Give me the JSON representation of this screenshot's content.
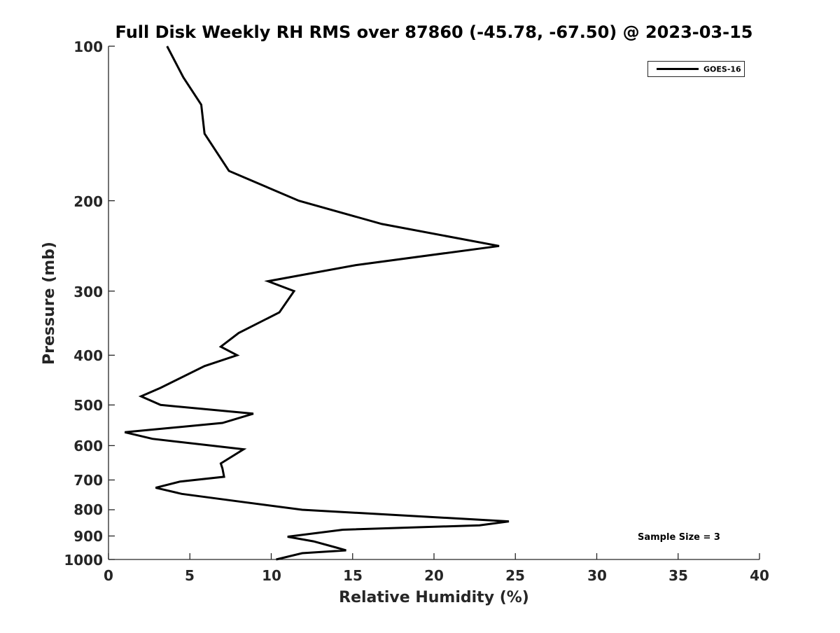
{
  "chart_data": {
    "type": "line",
    "title": "Full Disk Weekly RH RMS over 87860 (-45.78, -67.50) @ 2023-03-15",
    "xlabel": "Relative Humidity (%)",
    "ylabel": "Pressure (mb)",
    "xlim": [
      0,
      40
    ],
    "ylim": [
      100,
      1000
    ],
    "y_scale": "log",
    "y_reversed": true,
    "xticks": [
      "0",
      "5",
      "10",
      "15",
      "20",
      "25",
      "30",
      "35",
      "40"
    ],
    "yticks": [
      "100",
      "200",
      "300",
      "400",
      "500",
      "600",
      "700",
      "800",
      "900",
      "1000"
    ],
    "grid": false,
    "legend": "top-right",
    "annotation": "Sample Size = 3",
    "series": [
      {
        "name": "GOES-16",
        "color": "#000000",
        "x": [
          3.6,
          4.6,
          5.7,
          5.9,
          7.4,
          11.7,
          16.8,
          24.0,
          15.2,
          9.8,
          11.4,
          10.5,
          8.0,
          6.9,
          7.9,
          5.9,
          3.2,
          2.0,
          3.2,
          8.9,
          7.0,
          1.0,
          2.7,
          8.3,
          6.9,
          7.0,
          7.1,
          4.4,
          2.9,
          4.5,
          7.9,
          11.9,
          24.6,
          22.8,
          14.4,
          11.0,
          12.6,
          14.0,
          14.6,
          11.9,
          10.3
        ],
        "y": [
          100,
          115,
          130,
          148,
          175,
          200,
          222,
          245,
          267,
          287,
          300,
          330,
          362,
          385,
          400,
          420,
          463,
          481,
          500,
          520,
          542,
          565,
          582,
          610,
          650,
          665,
          690,
          705,
          725,
          745,
          770,
          800,
          843,
          858,
          875,
          903,
          922,
          948,
          960,
          972,
          1000
        ]
      }
    ]
  }
}
